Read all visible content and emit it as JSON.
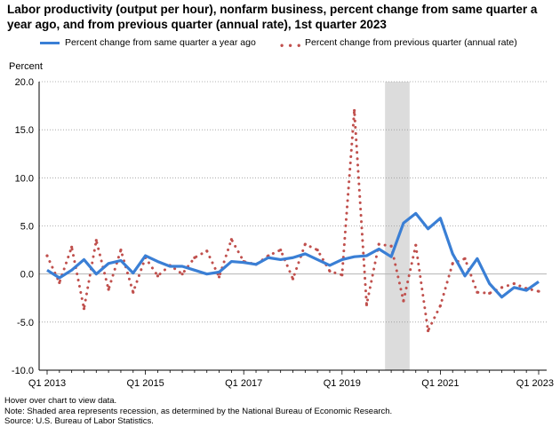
{
  "chart_data": {
    "type": "line",
    "title": "Labor productivity (output per hour), nonfarm business, percent change from same quarter a year ago, and from previous quarter (annual rate), 1st quarter 2023",
    "ylabel": "Percent",
    "xlabel": "",
    "ylim": [
      -10,
      20
    ],
    "yticks": [
      "20.0",
      "15.0",
      "10.0",
      "5.0",
      "0.0",
      "-5.0",
      "-10.0"
    ],
    "xtick_labels": [
      "Q1 2013",
      "Q1 2015",
      "Q1 2017",
      "Q1 2019",
      "Q1 2021",
      "Q1 2023"
    ],
    "x": [
      "Q1 2013",
      "Q2 2013",
      "Q3 2013",
      "Q4 2013",
      "Q1 2014",
      "Q2 2014",
      "Q3 2014",
      "Q4 2014",
      "Q1 2015",
      "Q2 2015",
      "Q3 2015",
      "Q4 2015",
      "Q1 2016",
      "Q2 2016",
      "Q3 2016",
      "Q4 2016",
      "Q1 2017",
      "Q2 2017",
      "Q3 2017",
      "Q4 2017",
      "Q1 2018",
      "Q2 2018",
      "Q3 2018",
      "Q4 2018",
      "Q1 2019",
      "Q2 2019",
      "Q3 2019",
      "Q4 2019",
      "Q1 2020",
      "Q2 2020",
      "Q3 2020",
      "Q4 2020",
      "Q1 2021",
      "Q2 2021",
      "Q3 2021",
      "Q4 2021",
      "Q1 2022",
      "Q2 2022",
      "Q3 2022",
      "Q4 2022",
      "Q1 2023"
    ],
    "series": [
      {
        "name": "Percent change from same quarter a year ago",
        "style": "solid",
        "color": "#3a7fd5",
        "values": [
          0.4,
          -0.4,
          0.4,
          1.5,
          0.0,
          1.1,
          1.4,
          0.1,
          1.9,
          1.3,
          0.8,
          0.8,
          0.4,
          0.0,
          0.2,
          1.3,
          1.2,
          1.0,
          1.7,
          1.5,
          1.7,
          2.1,
          1.5,
          0.9,
          1.5,
          1.8,
          1.9,
          2.6,
          1.8,
          5.3,
          6.3,
          4.7,
          5.8,
          2.1,
          -0.2,
          1.6,
          -1.0,
          -2.4,
          -1.4,
          -1.7,
          -0.8
        ]
      },
      {
        "name": "Percent change from previous quarter (annual rate)",
        "style": "dotted",
        "color": "#c0504d",
        "values": [
          1.9,
          -0.9,
          2.8,
          -3.6,
          3.5,
          -1.6,
          2.5,
          -1.9,
          1.7,
          -0.2,
          0.9,
          0.0,
          1.7,
          2.4,
          -0.3,
          3.6,
          1.3,
          1.0,
          1.9,
          2.5,
          -0.5,
          3.1,
          2.5,
          0.3,
          -0.1,
          17.0,
          -3.2,
          3.1,
          2.9,
          -2.8,
          3.0,
          -5.9,
          -3.3,
          1.1,
          1.6,
          -1.9,
          -2.0,
          -1.4,
          -1.0,
          -1.5,
          -1.8
        ]
      }
    ],
    "shaded_regions": [
      {
        "start": "Q1 2020",
        "end": "Q2 2020"
      }
    ],
    "grid": true,
    "legend_position": "top"
  },
  "notes": [
    "Hover over chart to view data.",
    "Note: Shaded area represents recession, as determined by the National Bureau of Economic Research.",
    "Source: U.S. Bureau of Labor Statistics."
  ]
}
